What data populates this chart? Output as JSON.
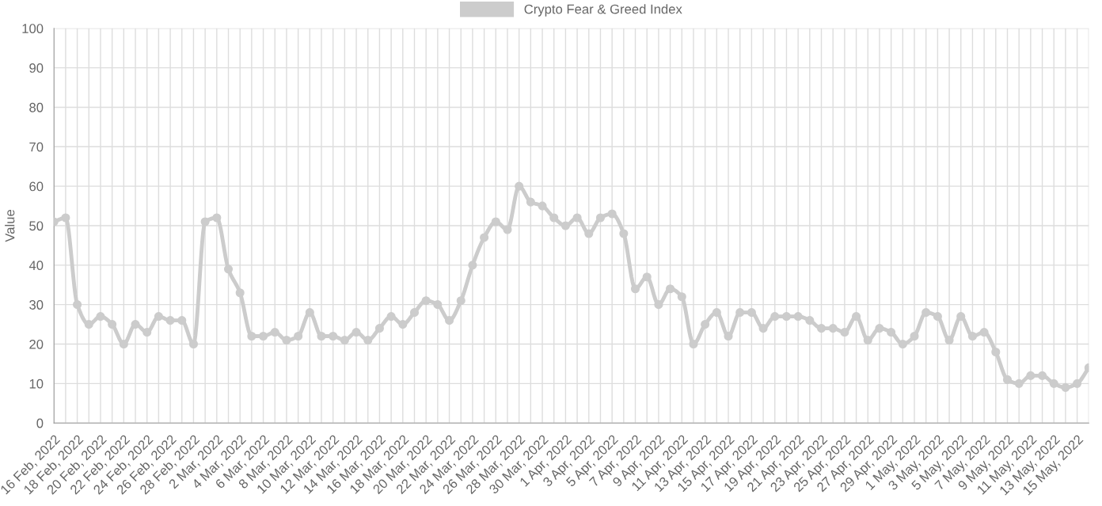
{
  "chart_data": {
    "type": "line",
    "ylabel": "Value",
    "categories": [
      "16 Feb, 2022",
      null,
      "18 Feb, 2022",
      null,
      "20 Feb, 2022",
      null,
      "22 Feb, 2022",
      null,
      "24 Feb, 2022",
      null,
      "26 Feb, 2022",
      null,
      "28 Feb, 2022",
      null,
      "2 Mar, 2022",
      null,
      "4 Mar, 2022",
      null,
      "6 Mar, 2022",
      null,
      "8 Mar, 2022",
      null,
      "10 Mar, 2022",
      null,
      "12 Mar, 2022",
      null,
      "14 Mar, 2022",
      null,
      "16 Mar, 2022",
      null,
      "18 Mar, 2022",
      null,
      "20 Mar, 2022",
      null,
      "22 Mar, 2022",
      null,
      "24 Mar, 2022",
      null,
      "26 Mar, 2022",
      null,
      "28 Mar, 2022",
      null,
      "30 Mar, 2022",
      null,
      "1 Apr, 2022",
      null,
      "3 Apr, 2022",
      null,
      "5 Apr, 2022",
      null,
      "7 Apr, 2022",
      null,
      "9 Apr, 2022",
      null,
      "11 Apr, 2022",
      null,
      "13 Apr, 2022",
      null,
      "15 Apr, 2022",
      null,
      "17 Apr, 2022",
      null,
      "19 Apr, 2022",
      null,
      "21 Apr, 2022",
      null,
      "23 Apr, 2022",
      null,
      "25 Apr, 2022",
      null,
      "27 Apr, 2022",
      null,
      "29 Apr, 2022",
      null,
      "1 May, 2022",
      null,
      "3 May, 2022",
      null,
      "5 May, 2022",
      null,
      "7 May, 2022",
      null,
      "9 May, 2022",
      null,
      "11 May, 2022",
      null,
      "13 May, 2022",
      null,
      "15 May, 2022",
      null
    ],
    "series": [
      {
        "name": "Crypto Fear & Greed Index",
        "color": "#cccccc",
        "values": [
          51,
          52,
          30,
          25,
          27,
          25,
          20,
          25,
          23,
          27,
          26,
          26,
          20,
          51,
          52,
          39,
          33,
          22,
          22,
          23,
          21,
          22,
          28,
          22,
          22,
          21,
          23,
          21,
          24,
          27,
          25,
          28,
          31,
          30,
          26,
          31,
          40,
          47,
          51,
          49,
          60,
          56,
          55,
          52,
          50,
          52,
          48,
          52,
          53,
          48,
          34,
          37,
          30,
          34,
          32,
          20,
          25,
          28,
          22,
          28,
          28,
          24,
          27,
          27,
          27,
          26,
          24,
          24,
          23,
          27,
          21,
          24,
          23,
          20,
          22,
          28,
          27,
          21,
          27,
          22,
          23,
          18,
          11,
          10,
          12,
          12,
          10,
          9,
          10,
          14
        ]
      }
    ],
    "ylim": [
      0,
      100
    ],
    "yticks": [
      0,
      10,
      20,
      30,
      40,
      50,
      60,
      70,
      80,
      90,
      100
    ],
    "grid": true,
    "legend": "top",
    "marker": "circle",
    "line_style": "solid"
  }
}
